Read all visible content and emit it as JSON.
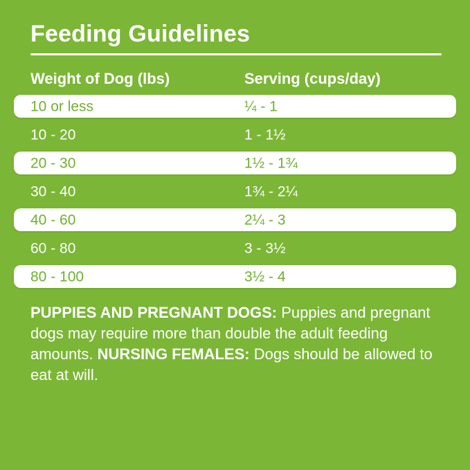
{
  "title": "Feeding Guidelines",
  "table": {
    "col1_header": "Weight of Dog (lbs)",
    "col2_header": "Serving (cups/day)",
    "rows": [
      {
        "weight": "10 or less",
        "serving": "¼ - 1"
      },
      {
        "weight": "10 - 20",
        "serving": "1 - 1½"
      },
      {
        "weight": "20 - 30",
        "serving": "1½ - 1¾"
      },
      {
        "weight": "30 - 40",
        "serving": "1¾ - 2¼"
      },
      {
        "weight": "40 - 60",
        "serving": "2¼ - 3"
      },
      {
        "weight": "60 - 80",
        "serving": "3 - 3½"
      },
      {
        "weight": "80 - 100",
        "serving": "3½ - 4"
      }
    ]
  },
  "notes": {
    "segments": [
      {
        "text": "PUPPIES AND PREGNANT DOGS:",
        "bold": true
      },
      {
        "text": " Puppies and pregnant dogs may require more than double the adult feeding amounts. ",
        "bold": false
      },
      {
        "text": "NURSING FEMALES:",
        "bold": true
      },
      {
        "text": " Dogs should be allowed to eat at will.",
        "bold": false
      }
    ]
  },
  "colors": {
    "background_green": "#7bb636",
    "row_text_green": "#6fb02f",
    "row_background_white": "#ffffff",
    "text_white": "#ffffff"
  }
}
